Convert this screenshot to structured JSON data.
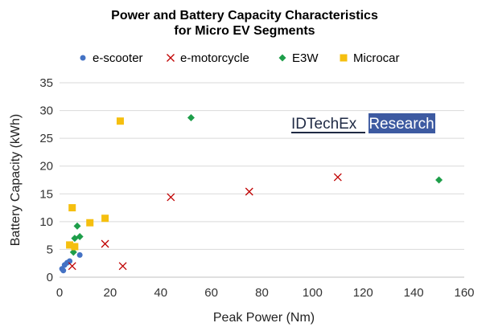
{
  "chart_data": {
    "type": "scatter",
    "title": [
      "Power and Battery Capacity Characteristics",
      "for Micro EV Segments"
    ],
    "xlabel": "Peak Power (Nm)",
    "ylabel": "Battery Capacity (kWh)",
    "xlim": [
      0,
      160
    ],
    "ylim": [
      0,
      35
    ],
    "xticks": [
      0,
      20,
      40,
      60,
      80,
      100,
      120,
      140,
      160
    ],
    "yticks": [
      0,
      5,
      10,
      15,
      20,
      25,
      30,
      35
    ],
    "grid": "horizontal",
    "legend_position": "top",
    "series": [
      {
        "name": "e-scooter",
        "marker": "circle",
        "color": "#4472C4",
        "points": [
          [
            1,
            1.5
          ],
          [
            1.5,
            1.2
          ],
          [
            2,
            2.2
          ],
          [
            3,
            2.6
          ],
          [
            4,
            2.9
          ],
          [
            8,
            4.0
          ]
        ]
      },
      {
        "name": "e-motorcycle",
        "marker": "x",
        "color": "#C00000",
        "points": [
          [
            5,
            2.0
          ],
          [
            18,
            6.0
          ],
          [
            25,
            2.0
          ],
          [
            44,
            14.4
          ],
          [
            75,
            15.4
          ],
          [
            110,
            18.0
          ]
        ]
      },
      {
        "name": "E3W",
        "marker": "diamond",
        "color": "#1E9E4A",
        "points": [
          [
            5.5,
            4.5
          ],
          [
            6,
            7.0
          ],
          [
            7,
            9.2
          ],
          [
            8,
            7.3
          ],
          [
            52,
            28.7
          ],
          [
            150,
            17.5
          ]
        ]
      },
      {
        "name": "Microcar",
        "marker": "square",
        "color": "#F5BF0F",
        "points": [
          [
            4,
            5.8
          ],
          [
            5,
            12.5
          ],
          [
            6,
            5.5
          ],
          [
            12,
            9.8
          ],
          [
            18,
            10.6
          ],
          [
            24,
            28.1
          ]
        ]
      }
    ]
  },
  "logo": {
    "brand": "IDTechEx",
    "suffix": "Research",
    "brand_color": "#1F2A44",
    "suffix_bg": "#3D5AA1"
  }
}
